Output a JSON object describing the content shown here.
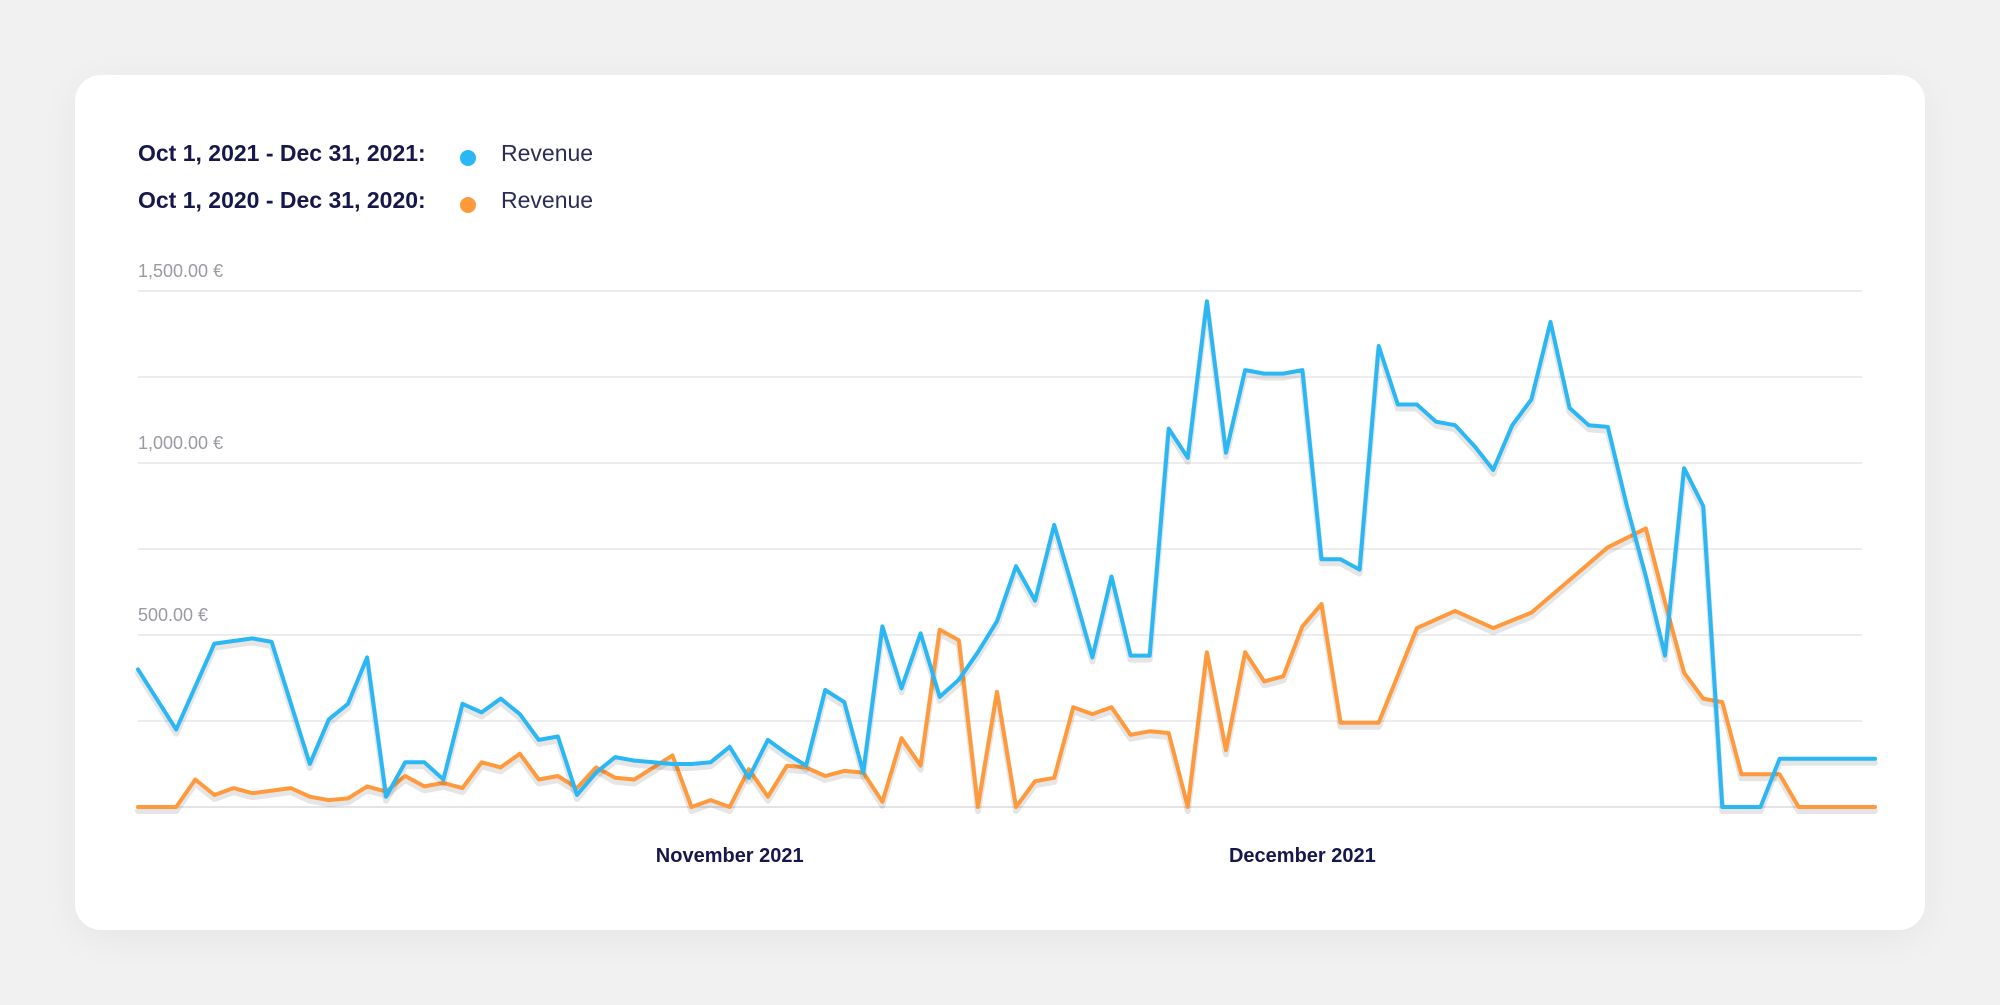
{
  "legend": [
    {
      "period": "Oct 1, 2021 - Dec 31, 2021:",
      "label": "Revenue",
      "color": "#2ab7f4"
    },
    {
      "period": "Oct 1, 2020 - Dec 31, 2020:",
      "label": "Revenue",
      "color": "#ff9a3c"
    }
  ],
  "chart_data": {
    "type": "line",
    "ylim": [
      0,
      1500
    ],
    "y_ticks": [
      {
        "value": 500,
        "label": "500.00 €"
      },
      {
        "value": 1000,
        "label": "1,000.00 €"
      },
      {
        "value": 1500,
        "label": "1,500.00 €"
      }
    ],
    "y_gridlines": [
      0,
      250,
      500,
      750,
      1000,
      1250,
      1500
    ],
    "x_ticks": [
      {
        "date": "2021-11-01",
        "label": "November 2021"
      },
      {
        "date": "2021-12-01",
        "label": "December 2021"
      }
    ],
    "xlim": [
      "2021-10-01",
      "2021-12-31"
    ],
    "grid": true,
    "series": [
      {
        "name": "Oct 1, 2021 - Dec 31, 2021: Revenue",
        "color": "#2ab7f4",
        "x": [
          "2021-10-01",
          "2021-10-03",
          "2021-10-05",
          "2021-10-07",
          "2021-10-08",
          "2021-10-10",
          "2021-10-11",
          "2021-10-12",
          "2021-10-13",
          "2021-10-14",
          "2021-10-15",
          "2021-10-16",
          "2021-10-17",
          "2021-10-18",
          "2021-10-19",
          "2021-10-20",
          "2021-10-21",
          "2021-10-22",
          "2021-10-23",
          "2021-10-24",
          "2021-10-25",
          "2021-10-26",
          "2021-10-27",
          "2021-10-28",
          "2021-10-29",
          "2021-10-30",
          "2021-10-31",
          "2021-11-01",
          "2021-11-02",
          "2021-11-03",
          "2021-11-04",
          "2021-11-05",
          "2021-11-06",
          "2021-11-07",
          "2021-11-08",
          "2021-11-09",
          "2021-11-10",
          "2021-11-11",
          "2021-11-12",
          "2021-11-13",
          "2021-11-14",
          "2021-11-15",
          "2021-11-16",
          "2021-11-17",
          "2021-11-18",
          "2021-11-19",
          "2021-11-20",
          "2021-11-21",
          "2021-11-22",
          "2021-11-23",
          "2021-11-24",
          "2021-11-25",
          "2021-11-26",
          "2021-11-27",
          "2021-11-28",
          "2021-11-29",
          "2021-11-30",
          "2021-12-01",
          "2021-12-02",
          "2021-12-03",
          "2021-12-04",
          "2021-12-05",
          "2021-12-06",
          "2021-12-07",
          "2021-12-08",
          "2021-12-09",
          "2021-12-10",
          "2021-12-11",
          "2021-12-12",
          "2021-12-13",
          "2021-12-14",
          "2021-12-15",
          "2021-12-16",
          "2021-12-17",
          "2021-12-18",
          "2021-12-19",
          "2021-12-20",
          "2021-12-21",
          "2021-12-22",
          "2021-12-23",
          "2021-12-24",
          "2021-12-25",
          "2021-12-26",
          "2021-12-27",
          "2021-12-28",
          "2021-12-29",
          "2021-12-30",
          "2021-12-31"
        ],
        "values": [
          400,
          225,
          475,
          490,
          480,
          125,
          255,
          300,
          435,
          30,
          130,
          130,
          80,
          300,
          275,
          315,
          270,
          195,
          205,
          35,
          100,
          145,
          135,
          130,
          125,
          125,
          130,
          175,
          85,
          195,
          155,
          120,
          340,
          305,
          100,
          525,
          345,
          505,
          320,
          370,
          450,
          540,
          700,
          600,
          820,
          630,
          435,
          670,
          440,
          440,
          1100,
          1015,
          1470,
          1030,
          1270,
          1260,
          1260,
          1270,
          720,
          720,
          690,
          1340,
          1170,
          1170,
          1120,
          1110,
          1050,
          980,
          1110,
          1185,
          1410,
          1160,
          1110,
          1105,
          875,
          670,
          440,
          985,
          875,
          0,
          0,
          0,
          140,
          140,
          140,
          140,
          140,
          140
        ]
      },
      {
        "name": "Oct 1, 2020 - Dec 31, 2020: Revenue",
        "color": "#ff9a3c",
        "x": [
          "2021-10-01",
          "2021-10-03",
          "2021-10-04",
          "2021-10-05",
          "2021-10-06",
          "2021-10-07",
          "2021-10-09",
          "2021-10-10",
          "2021-10-11",
          "2021-10-12",
          "2021-10-13",
          "2021-10-14",
          "2021-10-15",
          "2021-10-16",
          "2021-10-17",
          "2021-10-18",
          "2021-10-19",
          "2021-10-20",
          "2021-10-21",
          "2021-10-22",
          "2021-10-23",
          "2021-10-24",
          "2021-10-25",
          "2021-10-26",
          "2021-10-27",
          "2021-10-29",
          "2021-10-30",
          "2021-10-31",
          "2021-11-01",
          "2021-11-02",
          "2021-11-03",
          "2021-11-04",
          "2021-11-05",
          "2021-11-06",
          "2021-11-07",
          "2021-11-08",
          "2021-11-09",
          "2021-11-10",
          "2021-11-11",
          "2021-11-12",
          "2021-11-13",
          "2021-11-14",
          "2021-11-15",
          "2021-11-16",
          "2021-11-17",
          "2021-11-18",
          "2021-11-19",
          "2021-11-20",
          "2021-11-21",
          "2021-11-22",
          "2021-11-23",
          "2021-11-24",
          "2021-11-25",
          "2021-11-26",
          "2021-11-27",
          "2021-11-28",
          "2021-11-29",
          "2021-11-30",
          "2021-12-01",
          "2021-12-02",
          "2021-12-03",
          "2021-12-05",
          "2021-12-07",
          "2021-12-09",
          "2021-12-11",
          "2021-12-13",
          "2021-12-15",
          "2021-12-17",
          "2021-12-19",
          "2021-12-20",
          "2021-12-21",
          "2021-12-22",
          "2021-12-23",
          "2021-12-24",
          "2021-12-25",
          "2021-12-26",
          "2021-12-27",
          "2021-12-28",
          "2021-12-29",
          "2021-12-30",
          "2021-12-31"
        ],
        "values": [
          0,
          0,
          80,
          35,
          55,
          40,
          55,
          30,
          20,
          25,
          60,
          45,
          90,
          60,
          70,
          55,
          130,
          115,
          155,
          80,
          90,
          55,
          115,
          85,
          80,
          150,
          0,
          20,
          0,
          110,
          30,
          120,
          115,
          90,
          105,
          100,
          15,
          200,
          120,
          515,
          485,
          0,
          335,
          0,
          75,
          85,
          290,
          270,
          290,
          210,
          220,
          215,
          0,
          450,
          165,
          450,
          365,
          380,
          525,
          590,
          245,
          245,
          520,
          570,
          520,
          565,
          660,
          755,
          810,
          595,
          390,
          315,
          305,
          95,
          95,
          95,
          0,
          0,
          0,
          0,
          0
        ]
      }
    ]
  }
}
